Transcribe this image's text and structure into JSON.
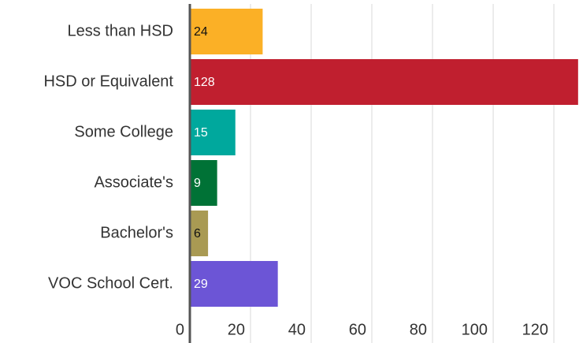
{
  "chart_data": {
    "type": "bar",
    "orientation": "horizontal",
    "categories": [
      "Less than HSD",
      "HSD or Equivalent",
      "Some College",
      "Associate's",
      "Bachelor's",
      "VOC School Cert."
    ],
    "values": [
      24,
      128,
      15,
      9,
      6,
      29
    ],
    "colors": [
      "#fbb026",
      "#c01f2f",
      "#00a89d",
      "#007236",
      "#a99a53",
      "#6c55d6"
    ],
    "label_colors": [
      "#111111",
      "#ffffff",
      "#ffffff",
      "#ffffff",
      "#111111",
      "#ffffff"
    ],
    "xlim": [
      0,
      127
    ],
    "xticks": [
      0,
      20,
      40,
      60,
      80,
      100,
      120
    ],
    "grid": true
  }
}
